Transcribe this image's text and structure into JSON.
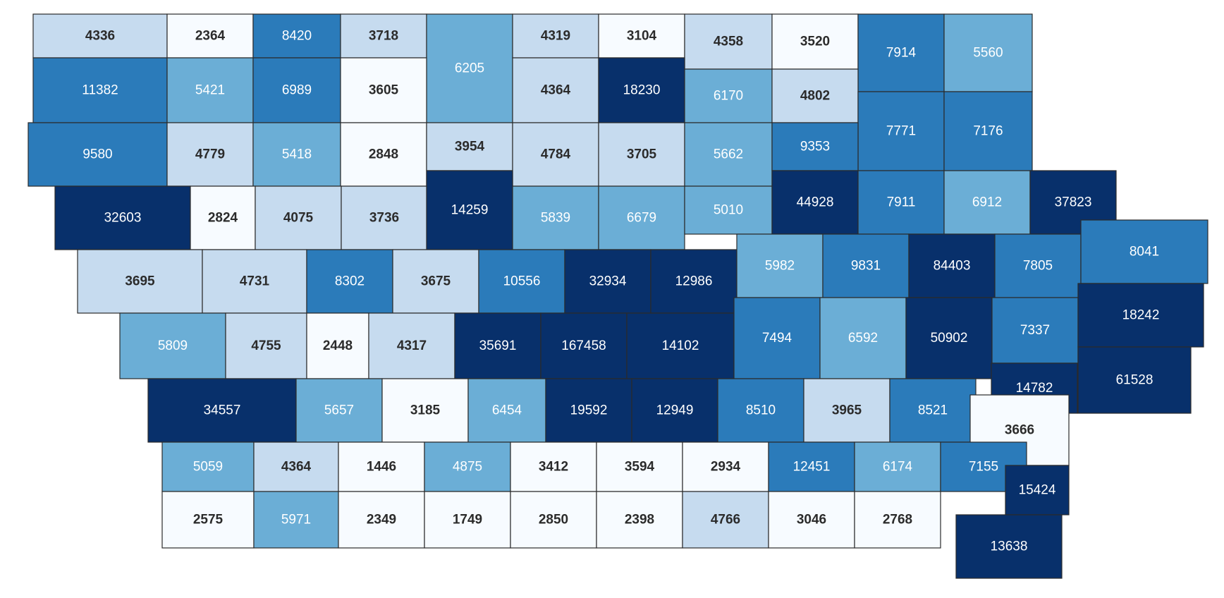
{
  "map": {
    "region": "Iowa counties",
    "palette": {
      "lowest": "#f7fbff",
      "low": "#c6dbef",
      "mid": "#6baed6",
      "high": "#2b7bba",
      "highest": "#08306b",
      "outline": "#2b2b2b",
      "label_dark": "#2b2b2b",
      "label_light": "#ffffff"
    },
    "counties": [
      {
        "value": "4336",
        "shade": "low"
      },
      {
        "value": "2364",
        "shade": "lowest"
      },
      {
        "value": "8420",
        "shade": "high"
      },
      {
        "value": "3718",
        "shade": "low"
      },
      {
        "value": "6205",
        "shade": "mid"
      },
      {
        "value": "4319",
        "shade": "low"
      },
      {
        "value": "3104",
        "shade": "lowest"
      },
      {
        "value": "4358",
        "shade": "low"
      },
      {
        "value": "3520",
        "shade": "lowest"
      },
      {
        "value": "7914",
        "shade": "high"
      },
      {
        "value": "5560",
        "shade": "mid"
      },
      {
        "value": "11382",
        "shade": "high"
      },
      {
        "value": "5421",
        "shade": "mid"
      },
      {
        "value": "6989",
        "shade": "high"
      },
      {
        "value": "3605",
        "shade": "lowest"
      },
      {
        "value": "4364",
        "shade": "low"
      },
      {
        "value": "18230",
        "shade": "highest"
      },
      {
        "value": "6170",
        "shade": "mid"
      },
      {
        "value": "4802",
        "shade": "low"
      },
      {
        "value": "7771",
        "shade": "high"
      },
      {
        "value": "7176",
        "shade": "high"
      },
      {
        "value": "9580",
        "shade": "high"
      },
      {
        "value": "4779",
        "shade": "low"
      },
      {
        "value": "5418",
        "shade": "mid"
      },
      {
        "value": "2848",
        "shade": "lowest"
      },
      {
        "value": "3954",
        "shade": "low"
      },
      {
        "value": "4784",
        "shade": "low"
      },
      {
        "value": "3705",
        "shade": "low"
      },
      {
        "value": "5662",
        "shade": "mid"
      },
      {
        "value": "9353",
        "shade": "high"
      },
      {
        "value": "32603",
        "shade": "highest"
      },
      {
        "value": "2824",
        "shade": "lowest"
      },
      {
        "value": "4075",
        "shade": "low"
      },
      {
        "value": "3736",
        "shade": "low"
      },
      {
        "value": "14259",
        "shade": "highest"
      },
      {
        "value": "5839",
        "shade": "mid"
      },
      {
        "value": "6679",
        "shade": "mid"
      },
      {
        "value": "5010",
        "shade": "mid"
      },
      {
        "value": "44928",
        "shade": "highest"
      },
      {
        "value": "7911",
        "shade": "high"
      },
      {
        "value": "6912",
        "shade": "mid"
      },
      {
        "value": "37823",
        "shade": "highest"
      },
      {
        "value": "3695",
        "shade": "low"
      },
      {
        "value": "4731",
        "shade": "low"
      },
      {
        "value": "8302",
        "shade": "high"
      },
      {
        "value": "3675",
        "shade": "low"
      },
      {
        "value": "10556",
        "shade": "high"
      },
      {
        "value": "32934",
        "shade": "highest"
      },
      {
        "value": "12986",
        "shade": "highest"
      },
      {
        "value": "5982",
        "shade": "mid"
      },
      {
        "value": "9831",
        "shade": "high"
      },
      {
        "value": "84403",
        "shade": "highest"
      },
      {
        "value": "7805",
        "shade": "high"
      },
      {
        "value": "8041",
        "shade": "high"
      },
      {
        "value": "5809",
        "shade": "mid"
      },
      {
        "value": "4755",
        "shade": "low"
      },
      {
        "value": "2448",
        "shade": "lowest"
      },
      {
        "value": "4317",
        "shade": "low"
      },
      {
        "value": "35691",
        "shade": "highest"
      },
      {
        "value": "167458",
        "shade": "highest"
      },
      {
        "value": "14102",
        "shade": "highest"
      },
      {
        "value": "7494",
        "shade": "high"
      },
      {
        "value": "6592",
        "shade": "mid"
      },
      {
        "value": "50902",
        "shade": "highest"
      },
      {
        "value": "7337",
        "shade": "high"
      },
      {
        "value": "18242",
        "shade": "highest"
      },
      {
        "value": "61528",
        "shade": "highest"
      },
      {
        "value": "34557",
        "shade": "highest"
      },
      {
        "value": "5657",
        "shade": "mid"
      },
      {
        "value": "3185",
        "shade": "lowest"
      },
      {
        "value": "6454",
        "shade": "mid"
      },
      {
        "value": "19592",
        "shade": "highest"
      },
      {
        "value": "12949",
        "shade": "highest"
      },
      {
        "value": "8510",
        "shade": "high"
      },
      {
        "value": "3965",
        "shade": "low"
      },
      {
        "value": "8521",
        "shade": "high"
      },
      {
        "value": "14782",
        "shade": "highest"
      },
      {
        "value": "3666",
        "shade": "lowest"
      },
      {
        "value": "5059",
        "shade": "mid"
      },
      {
        "value": "4364",
        "shade": "low"
      },
      {
        "value": "1446",
        "shade": "lowest"
      },
      {
        "value": "4875",
        "shade": "mid"
      },
      {
        "value": "3412",
        "shade": "lowest"
      },
      {
        "value": "3594",
        "shade": "lowest"
      },
      {
        "value": "2934",
        "shade": "lowest"
      },
      {
        "value": "12451",
        "shade": "high"
      },
      {
        "value": "6174",
        "shade": "mid"
      },
      {
        "value": "7155",
        "shade": "high"
      },
      {
        "value": "15424",
        "shade": "highest"
      },
      {
        "value": "2575",
        "shade": "lowest"
      },
      {
        "value": "5971",
        "shade": "mid"
      },
      {
        "value": "2349",
        "shade": "lowest"
      },
      {
        "value": "1749",
        "shade": "lowest"
      },
      {
        "value": "2850",
        "shade": "lowest"
      },
      {
        "value": "2398",
        "shade": "lowest"
      },
      {
        "value": "4766",
        "shade": "low"
      },
      {
        "value": "3046",
        "shade": "lowest"
      },
      {
        "value": "2768",
        "shade": "lowest"
      },
      {
        "value": "13638",
        "shade": "highest"
      }
    ]
  }
}
